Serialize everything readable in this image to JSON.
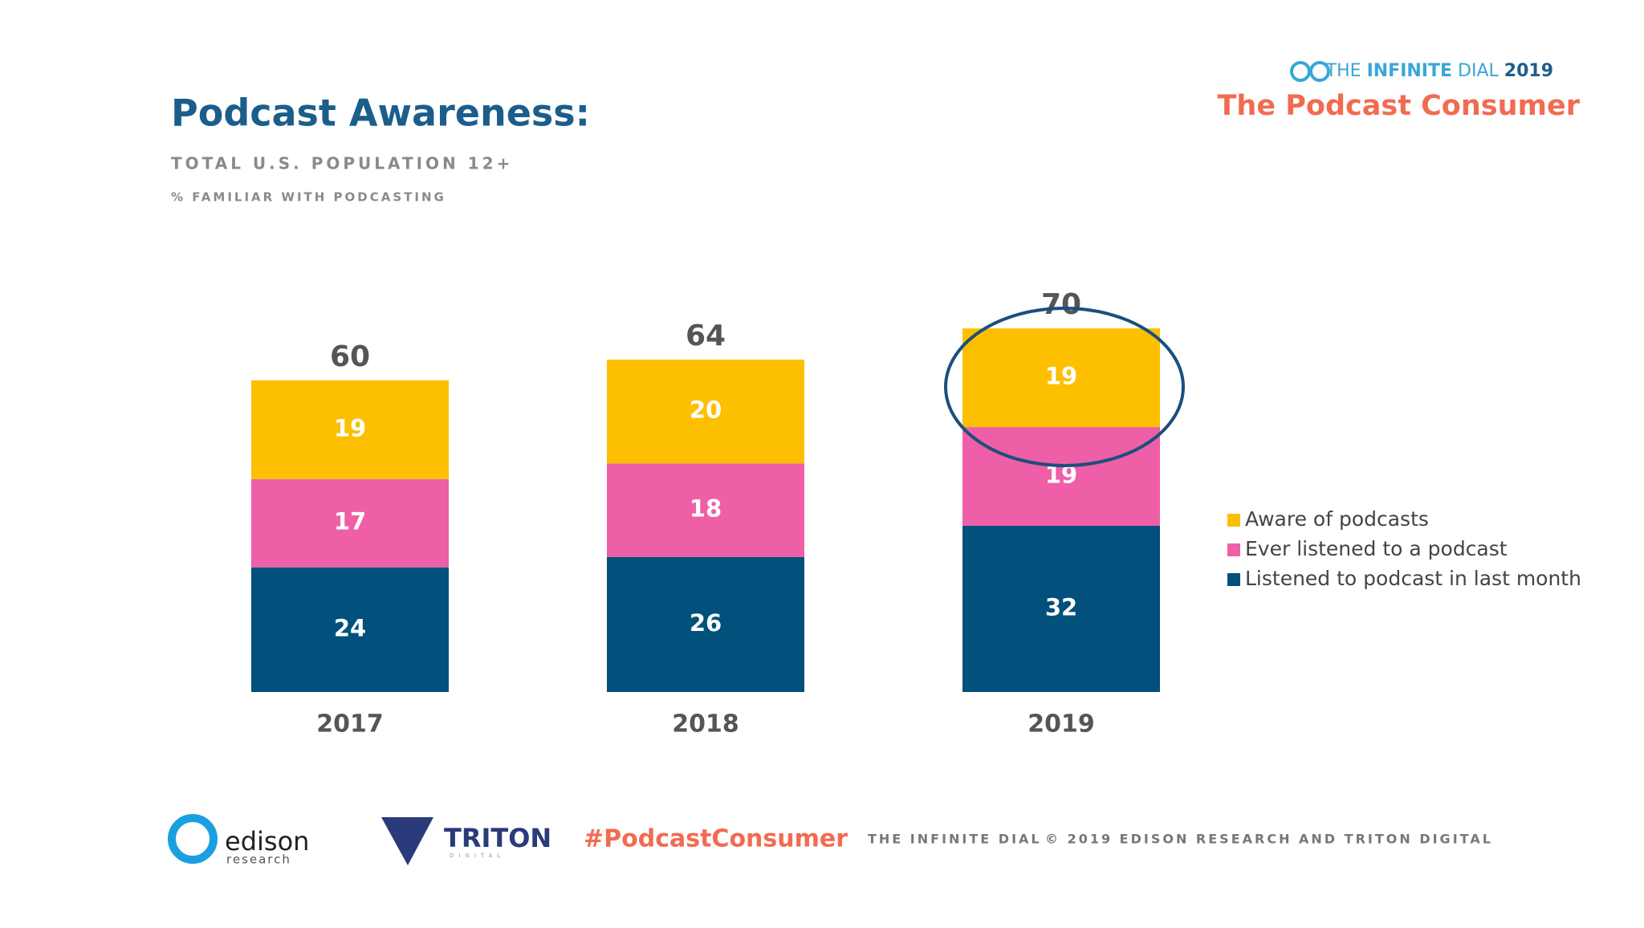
{
  "chart_data": {
    "type": "stacked-bar",
    "title": "Podcast Awareness:",
    "subtitle": "TOTAL U.S. POPULATION 12+",
    "measure": "% FAMILIAR WITH PODCASTING",
    "categories": [
      "2017",
      "2018",
      "2019"
    ],
    "series": [
      {
        "name": "Listened to podcast in last month",
        "color": "#02507c",
        "values": [
          24,
          26,
          32
        ]
      },
      {
        "name": "Ever listened to a podcast",
        "color": "#ef5fa7",
        "values": [
          17,
          18,
          19
        ]
      },
      {
        "name": "Aware of podcasts",
        "color": "#fcc000",
        "values": [
          19,
          20,
          19
        ]
      }
    ],
    "totals": [
      60,
      64,
      70
    ],
    "legend": "right"
  },
  "branding": {
    "report_prefix": "THE",
    "report_name": "INFINITE",
    "report_suffix": "DIAL",
    "report_year": "2019",
    "report_subtitle": "The Podcast Consumer",
    "edison_logo": "edison",
    "edison_logo_sub": "research",
    "triton_logo": "TRITON",
    "triton_logo_sub": "DIGITAL",
    "hashtag": "#PodcastConsumer",
    "footer_left": "THE INFINITE DIAL",
    "footer_right": "© 2019 EDISON RESEARCH AND TRITON DIGITAL"
  }
}
